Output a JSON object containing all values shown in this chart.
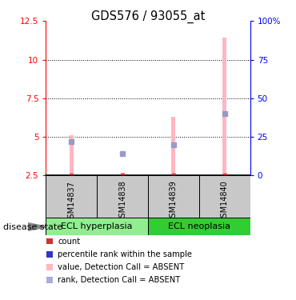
{
  "title": "GDS576 / 93055_at",
  "samples": [
    "GSM14837",
    "GSM14838",
    "GSM14839",
    "GSM14840"
  ],
  "group_labels": [
    "ECL hyperplasia",
    "ECL neoplasia"
  ],
  "group_colors": [
    "#90EE90",
    "#32CD32"
  ],
  "ylim_left": [
    2.5,
    12.5
  ],
  "ylim_right": [
    0,
    100
  ],
  "yticks_left": [
    2.5,
    5.0,
    7.5,
    10.0,
    12.5
  ],
  "yticks_right": [
    0,
    25,
    50,
    75,
    100
  ],
  "ytick_labels_left": [
    "2.5",
    "5",
    "7.5",
    "10",
    "12.5"
  ],
  "ytick_labels_right": [
    "0",
    "25",
    "50",
    "75",
    "100%"
  ],
  "hlines": [
    5.0,
    7.5,
    10.0
  ],
  "value_bars": [
    5.1,
    2.7,
    6.3,
    11.4
  ],
  "rank_bars_pct": [
    22,
    14,
    20,
    40
  ],
  "value_bar_color": "#FFB6C1",
  "rank_marker_color": "#9999CC",
  "red_dot_color": "#CC3333",
  "bar_width": 0.08,
  "rank_marker_size": 4,
  "legend_items": [
    {
      "label": "count",
      "color": "#CC3333"
    },
    {
      "label": "percentile rank within the sample",
      "color": "#3333CC"
    },
    {
      "label": "value, Detection Call = ABSENT",
      "color": "#FFB6C1"
    },
    {
      "label": "rank, Detection Call = ABSENT",
      "color": "#AAAADD"
    }
  ]
}
